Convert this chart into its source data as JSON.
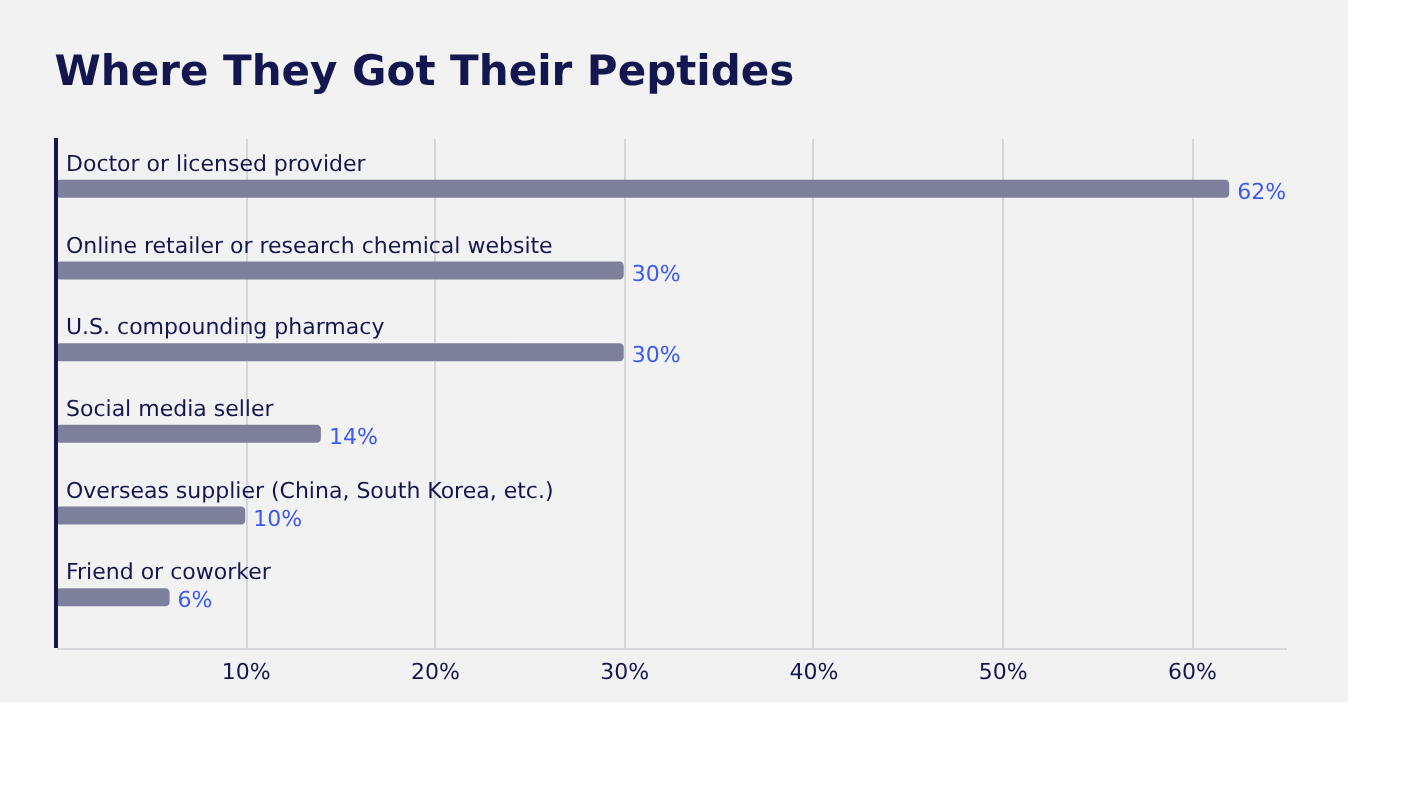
{
  "chart_data": {
    "type": "bar",
    "orientation": "horizontal",
    "title": "Where They Got Their Peptides",
    "categories": [
      "Doctor or licensed provider",
      "Online retailer or research chemical website",
      "U.S. compounding pharmacy",
      "Social media seller",
      "Overseas supplier (China, South Korea, etc.)",
      "Friend or coworker"
    ],
    "values": [
      62,
      30,
      30,
      14,
      10,
      6
    ],
    "value_labels": [
      "62%",
      "30%",
      "30%",
      "14%",
      "10%",
      "6%"
    ],
    "color": "#7e809b",
    "xticks": [
      {
        "value": 10,
        "label": "10%"
      },
      {
        "value": 20,
        "label": "20%"
      },
      {
        "value": 30,
        "label": "30%"
      },
      {
        "value": 40,
        "label": "40%"
      },
      {
        "value": 50,
        "label": "50%"
      },
      {
        "value": 60,
        "label": "60%"
      }
    ],
    "xlim": [
      0,
      65
    ],
    "grid": "x",
    "tick_labels": "x"
  }
}
